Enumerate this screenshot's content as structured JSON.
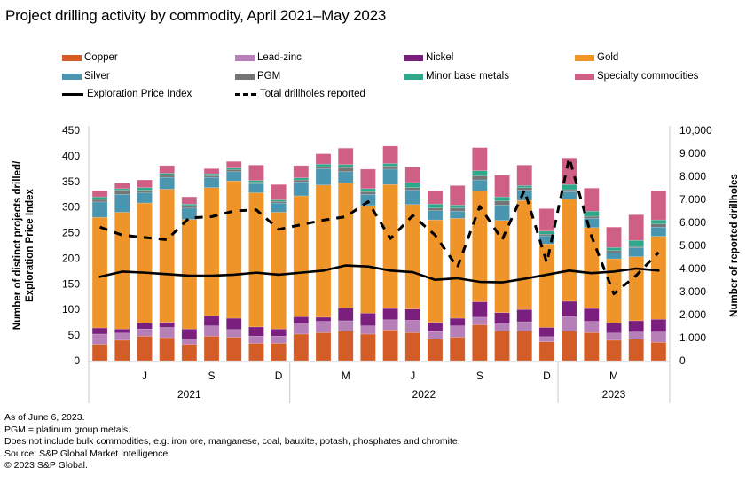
{
  "chart_data": {
    "type": "bar",
    "title": "Project drilling activity by commodity, April 2021–May 2023",
    "ylabel": "Number of distinct projects drilled/ Exploration Price Index",
    "y2label": "Number of reported drillholes",
    "ylim": [
      0,
      450
    ],
    "y2lim": [
      0,
      10000
    ],
    "yticks": [
      "0",
      "50",
      "100",
      "150",
      "200",
      "250",
      "300",
      "350",
      "400",
      "450"
    ],
    "y2ticks": [
      "0",
      "1,000",
      "2,000",
      "3,000",
      "4,000",
      "5,000",
      "6,000",
      "7,000",
      "8,000",
      "9,000",
      "10,000"
    ],
    "x": [
      "Apr 2021",
      "May 2021",
      "Jun 2021",
      "Jul 2021",
      "Aug 2021",
      "Sep 2021",
      "Oct 2021",
      "Nov 2021",
      "Dec 2021",
      "Jan 2022",
      "Feb 2022",
      "Mar 2022",
      "Apr 2022",
      "May 2022",
      "Jun 2022",
      "Jul 2022",
      "Aug 2022",
      "Sep 2022",
      "Oct 2022",
      "Nov 2022",
      "Dec 2022",
      "Jan 2023",
      "Feb 2023",
      "Mar 2023",
      "Apr 2023",
      "May 2023"
    ],
    "month_ticks": [
      {
        "label": "J",
        "index": 2
      },
      {
        "label": "S",
        "index": 5
      },
      {
        "label": "D",
        "index": 8
      },
      {
        "label": "M",
        "index": 11
      },
      {
        "label": "J",
        "index": 14
      },
      {
        "label": "S",
        "index": 17
      },
      {
        "label": "D",
        "index": 20
      },
      {
        "label": "M",
        "index": 23
      }
    ],
    "years": [
      {
        "label": "2021",
        "from": 0,
        "to": 8
      },
      {
        "label": "2022",
        "from": 9,
        "to": 20
      },
      {
        "label": "2023",
        "from": 21,
        "to": 25
      }
    ],
    "series": [
      {
        "name": "Copper",
        "color": "#d45d27",
        "values": [
          32,
          40,
          48,
          45,
          32,
          48,
          46,
          34,
          34,
          52,
          55,
          58,
          52,
          60,
          55,
          42,
          46,
          70,
          58,
          58,
          37,
          58,
          55,
          40,
          42,
          36
        ]
      },
      {
        "name": "Lead-zinc",
        "color": "#b67fb8",
        "values": [
          20,
          14,
          14,
          20,
          10,
          20,
          15,
          14,
          14,
          20,
          22,
          20,
          16,
          20,
          24,
          15,
          22,
          15,
          14,
          18,
          10,
          28,
          22,
          14,
          14,
          20
        ]
      },
      {
        "name": "Nickel",
        "color": "#7a1f7e",
        "values": [
          12,
          8,
          12,
          10,
          20,
          20,
          22,
          18,
          14,
          14,
          8,
          25,
          25,
          22,
          22,
          18,
          15,
          30,
          22,
          24,
          18,
          30,
          25,
          20,
          22,
          25
        ]
      },
      {
        "name": "Gold",
        "color": "#ef9428",
        "values": [
          216,
          228,
          234,
          260,
          214,
          250,
          268,
          262,
          228,
          236,
          258,
          244,
          210,
          242,
          204,
          200,
          195,
          216,
          180,
          213,
          163,
          200,
          158,
          125,
          125,
          162
        ]
      },
      {
        "name": "Silver",
        "color": "#4a96b0",
        "values": [
          30,
          35,
          20,
          23,
          22,
          20,
          18,
          18,
          18,
          27,
          32,
          22,
          22,
          30,
          28,
          18,
          14,
          22,
          30,
          20,
          16,
          14,
          18,
          12,
          18,
          18
        ]
      },
      {
        "name": "PGM",
        "color": "#757575",
        "values": [
          5,
          8,
          5,
          4,
          5,
          3,
          4,
          3,
          3,
          4,
          4,
          8,
          5,
          6,
          5,
          5,
          6,
          8,
          8,
          5,
          3,
          4,
          4,
          4,
          2,
          6
        ]
      },
      {
        "name": "Minor base metals",
        "color": "#2ea88a",
        "values": [
          5,
          3,
          5,
          4,
          3,
          4,
          3,
          3,
          3,
          4,
          5,
          6,
          6,
          5,
          10,
          8,
          6,
          10,
          8,
          4,
          6,
          10,
          10,
          6,
          12,
          8
        ]
      },
      {
        "name": "Specialty commodities",
        "color": "#d05f86",
        "values": [
          12,
          11,
          15,
          15,
          14,
          10,
          13,
          30,
          30,
          24,
          20,
          32,
          38,
          34,
          30,
          26,
          38,
          45,
          42,
          40,
          44,
          52,
          45,
          40,
          50,
          57
        ]
      }
    ],
    "lines": [
      {
        "name": "Exploration Price Index",
        "axis": "left",
        "style": "solid",
        "values": [
          164,
          174,
          172,
          169,
          166,
          166,
          168,
          172,
          168,
          172,
          176,
          186,
          184,
          176,
          173,
          158,
          161,
          154,
          153,
          160,
          168,
          176,
          171,
          174,
          180,
          176
        ]
      },
      {
        "name": "Total drillholes reported",
        "axis": "right",
        "style": "dashed",
        "values": [
          5800,
          5450,
          5350,
          5250,
          6200,
          6250,
          6500,
          6550,
          5700,
          5900,
          6100,
          6250,
          6900,
          5300,
          6300,
          5450,
          4050,
          6700,
          5250,
          7400,
          4250,
          8800,
          5400,
          2900,
          3700,
          4700
        ]
      }
    ]
  },
  "legend": [
    {
      "label": "Copper",
      "color": "#d45d27",
      "kind": "swatch"
    },
    {
      "label": "Lead-zinc",
      "color": "#b67fb8",
      "kind": "swatch"
    },
    {
      "label": "Nickel",
      "color": "#7a1f7e",
      "kind": "swatch"
    },
    {
      "label": "Gold",
      "color": "#ef9428",
      "kind": "swatch"
    },
    {
      "label": "Silver",
      "color": "#4a96b0",
      "kind": "swatch"
    },
    {
      "label": "PGM",
      "color": "#757575",
      "kind": "swatch"
    },
    {
      "label": "Minor base metals",
      "color": "#2ea88a",
      "kind": "swatch"
    },
    {
      "label": "Specialty commodities",
      "color": "#d05f86",
      "kind": "swatch"
    },
    {
      "label": "Exploration Price Index",
      "kind": "line"
    },
    {
      "label": "Total drillholes reported",
      "kind": "dash"
    }
  ],
  "notes": [
    "As of June 6, 2023.",
    "PGM = platinum group metals.",
    "Does not include bulk commodities, e.g. iron ore, manganese, coal, bauxite, potash, phosphates and chromite.",
    "Source: S&P Global Market Intelligence.",
    "© 2023 S&P Global."
  ]
}
